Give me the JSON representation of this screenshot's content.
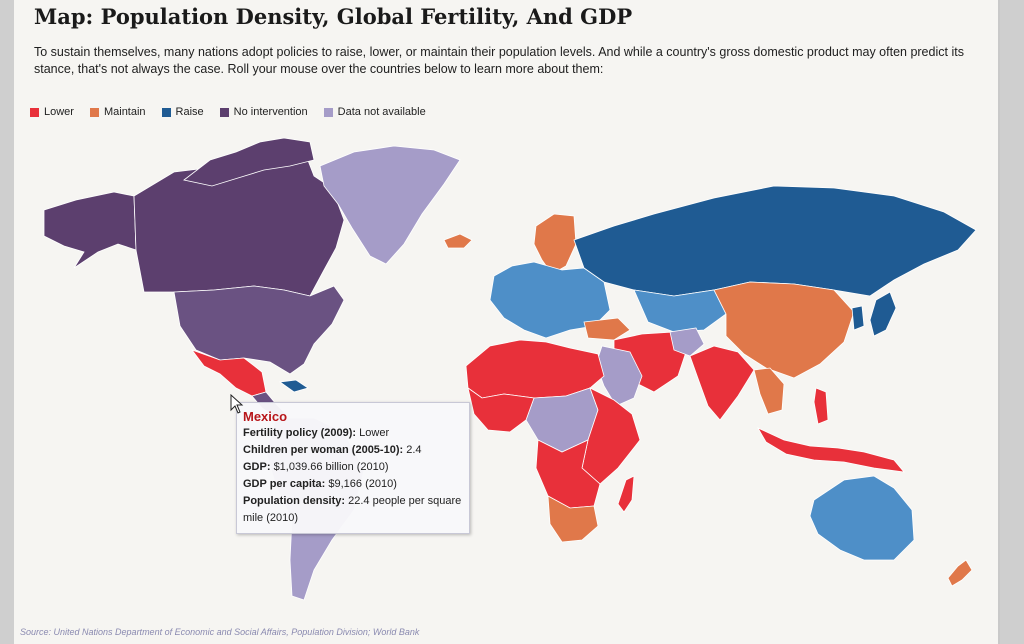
{
  "title": "Map: Population Density, Global Fertility, And GDP",
  "intro": "To sustain themselves, many nations adopt policies to raise, lower, or maintain their population levels. And while a country's gross domestic product may often predict its stance, that's not always the case. Roll your mouse over the countries below to learn more about them:",
  "legend": [
    {
      "label": "Lower",
      "color": "#e8303a"
    },
    {
      "label": "Maintain",
      "color": "#e0784a"
    },
    {
      "label": "Raise",
      "color": "#1f5b93"
    },
    {
      "label": "No intervention",
      "color": "#5c3f6e"
    },
    {
      "label": "Data not available",
      "color": "#a59cc8"
    }
  ],
  "colors": {
    "lower": "#e8303a",
    "maintain": "#e0784a",
    "raise": "#1f5b93",
    "raise_light": "#4e8fc8",
    "no_intervention": "#5c3f6e",
    "no_data": "#a59cc8",
    "americas_purple": "#6a5282"
  },
  "tooltip": {
    "country": "Mexico",
    "rows": [
      {
        "label": "Fertility policy (2009):",
        "value": "Lower"
      },
      {
        "label": "Children per woman (2005-10):",
        "value": "2.4"
      },
      {
        "label": "GDP:",
        "value": "$1,039.66 billion (2010)"
      },
      {
        "label": "GDP per capita:",
        "value": "$9,166 (2010)"
      },
      {
        "label": "Population density:",
        "value": "22.4 people per square mile (2010)"
      }
    ]
  },
  "source": "Source: United Nations Department of Economic and Social Affairs, Population Division; World Bank"
}
